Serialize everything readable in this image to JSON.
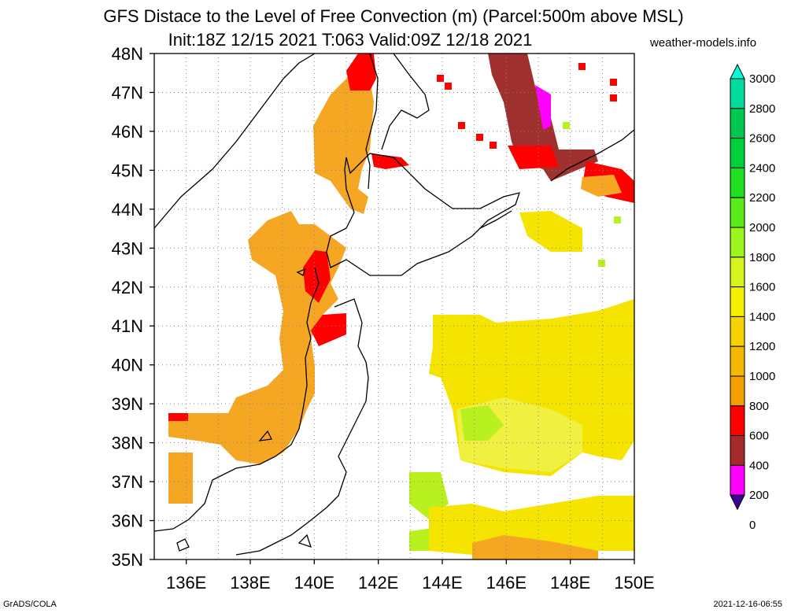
{
  "header": {
    "title_line1": "GFS Distace to the Level of Free Convection (m) (Parcel:500m above MSL)",
    "title_line2": "Init:18Z 12/15 2021 T:063 Valid:09Z 12/18 2021",
    "site": "weather-models.info"
  },
  "footer": {
    "left": "GrADS/COLA",
    "right": "2021-12-16-06:55"
  },
  "map": {
    "lat_labels": [
      "48N",
      "47N",
      "46N",
      "45N",
      "44N",
      "43N",
      "42N",
      "41N",
      "40N",
      "39N",
      "38N",
      "37N",
      "36N",
      "35N"
    ],
    "lon_labels": [
      "136E",
      "138E",
      "140E",
      "142E",
      "144E",
      "146E",
      "148E",
      "150E"
    ],
    "lon_range": [
      135,
      150
    ],
    "lat_range": [
      35,
      48
    ],
    "gridlines": "dotted",
    "coastlines": true
  },
  "colorbar": {
    "labels": [
      "3000",
      "2800",
      "2600",
      "2400",
      "2200",
      "2000",
      "1800",
      "1600",
      "1400",
      "1200",
      "1000",
      "800",
      "600",
      "400",
      "200",
      "0"
    ],
    "colors": [
      "#00ffe0",
      "#00dca0",
      "#00c850",
      "#00d03a",
      "#1fe020",
      "#5aec1a",
      "#9cf51e",
      "#d5f51a",
      "#f5ef00",
      "#f5d200",
      "#f5b800",
      "#f5a000",
      "#ff0000",
      "#a52a2a",
      "#ff00ff",
      "#3c0096"
    ],
    "extend": "both"
  },
  "fields": {
    "color_orange": "#f5a623",
    "color_red": "#ff0000",
    "color_brown": "#a0302e",
    "color_magenta": "#ff00ff",
    "color_yellow": "#f5e400",
    "color_lightyellow": "#f0f040",
    "color_green": "#b8f020"
  }
}
